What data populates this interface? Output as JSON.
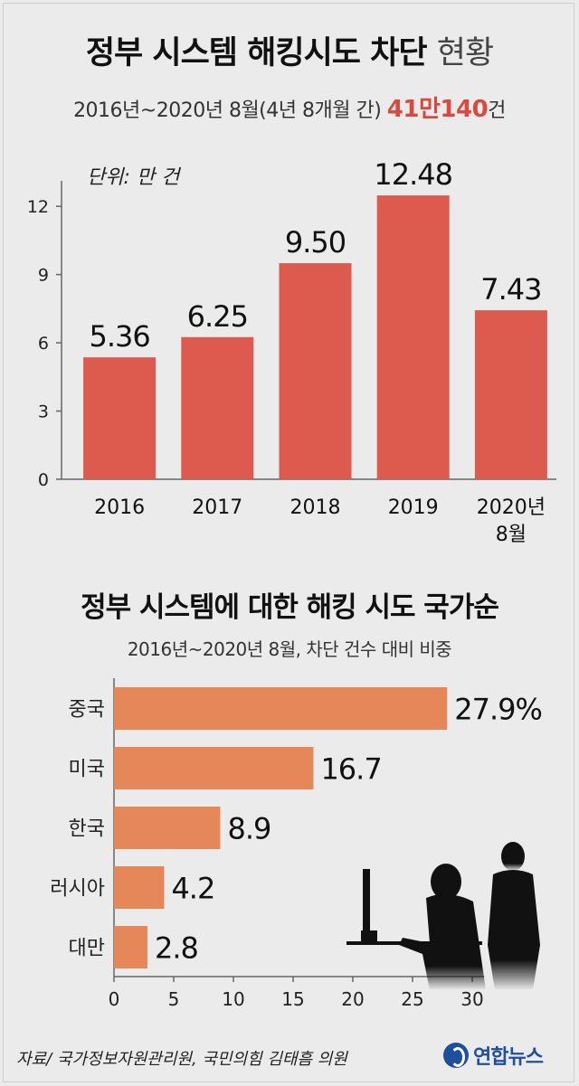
{
  "header": {
    "title_bold": "정부 시스템 해킹시도 차단",
    "title_light": "현황",
    "subtitle_prefix": "2016년~2020년 8월(4년 8개월 간)",
    "subtitle_highlight": "41만140",
    "subtitle_suffix": "건"
  },
  "chart_data": [
    {
      "type": "bar",
      "unit_label": "단위: 만 건",
      "categories": [
        "2016",
        "2017",
        "2018",
        "2019",
        "2020년\n8월"
      ],
      "values": [
        5.36,
        6.25,
        9.5,
        12.48,
        7.43
      ],
      "value_labels": [
        "5.36",
        "6.25",
        "9.50",
        "12.48",
        "7.43"
      ],
      "yticks": [
        0,
        3,
        6,
        9,
        12
      ],
      "ylim": [
        0,
        13.2
      ],
      "color": "#dc5a4e",
      "grid": false
    },
    {
      "type": "bar",
      "orientation": "horizontal",
      "title": "정부 시스템에 대한 해킹 시도 국가순",
      "subtitle": "2016년~2020년 8월, 차단 건수 대비 비중",
      "categories": [
        "중국",
        "미국",
        "한국",
        "러시아",
        "대만"
      ],
      "values": [
        27.9,
        16.7,
        8.9,
        4.2,
        2.8
      ],
      "value_labels": [
        "27.9%",
        "16.7",
        "8.9",
        "4.2",
        "2.8"
      ],
      "xticks": [
        0,
        5,
        10,
        15,
        20,
        25,
        30
      ],
      "xlim": [
        0,
        34
      ],
      "color": "#e6875a",
      "grid": false
    }
  ],
  "footer": {
    "source": "자료/ 국가정보자원관리원, 국민의힘 김태흠 의원",
    "logo_text": "연합뉴스"
  },
  "illustration": {
    "icon": "hacker-silhouette-icon"
  }
}
